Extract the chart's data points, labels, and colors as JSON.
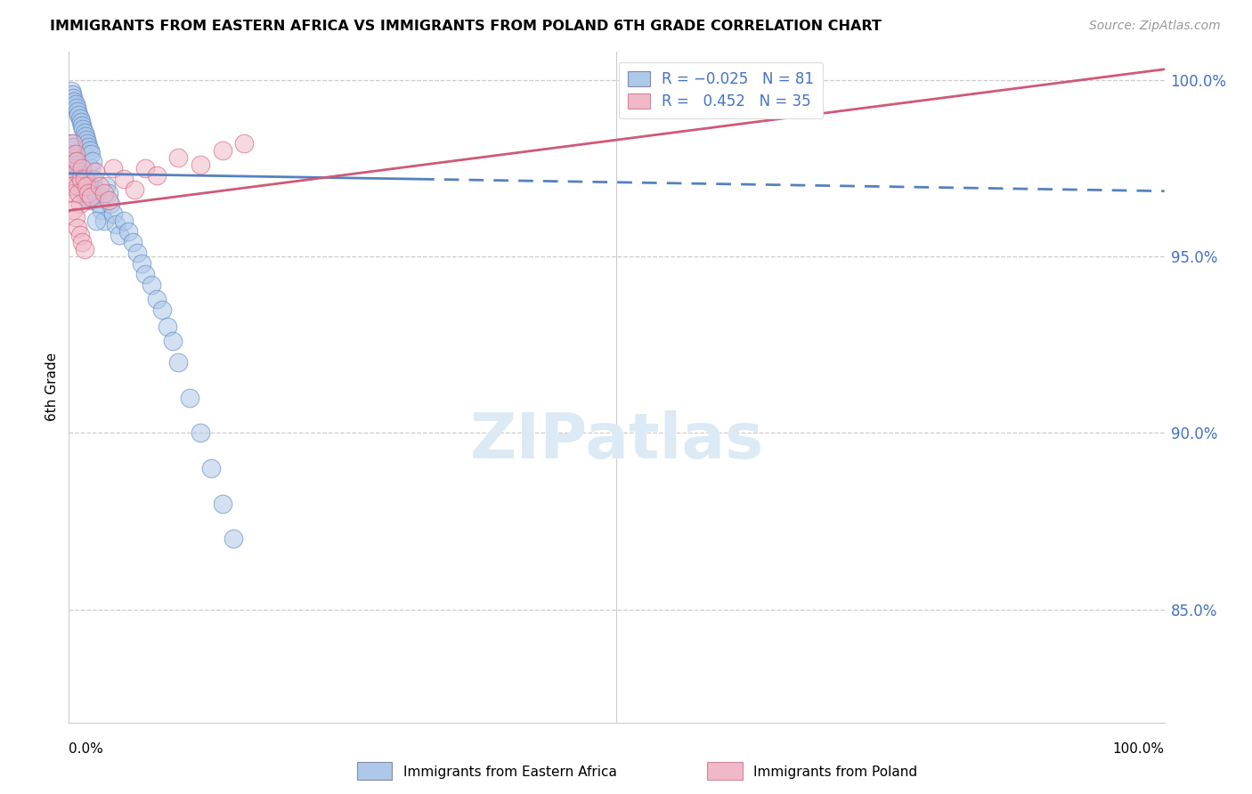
{
  "title": "IMMIGRANTS FROM EASTERN AFRICA VS IMMIGRANTS FROM POLAND 6TH GRADE CORRELATION CHART",
  "source": "Source: ZipAtlas.com",
  "ylabel": "6th Grade",
  "y_tick_labels": [
    "100.0%",
    "95.0%",
    "90.0%",
    "85.0%"
  ],
  "y_tick_values": [
    1.0,
    0.95,
    0.9,
    0.85
  ],
  "xlim": [
    0.0,
    1.0
  ],
  "ylim": [
    0.818,
    1.008
  ],
  "series1_color": "#adc8e8",
  "series2_color": "#f0b8c8",
  "trendline1_color": "#5580c0",
  "trendline2_color": "#d05878",
  "watermark_color": "#dceaf5",
  "blue_x": [
    0.001,
    0.002,
    0.002,
    0.003,
    0.003,
    0.004,
    0.004,
    0.005,
    0.005,
    0.005,
    0.006,
    0.006,
    0.007,
    0.007,
    0.008,
    0.008,
    0.009,
    0.009,
    0.01,
    0.01,
    0.011,
    0.011,
    0.012,
    0.013,
    0.014,
    0.015,
    0.016,
    0.017,
    0.018,
    0.019,
    0.02,
    0.022,
    0.024,
    0.026,
    0.028,
    0.03,
    0.032,
    0.034,
    0.036,
    0.038,
    0.04,
    0.043,
    0.046,
    0.05,
    0.054,
    0.058,
    0.062,
    0.066,
    0.07,
    0.075,
    0.08,
    0.085,
    0.09,
    0.095,
    0.1,
    0.11,
    0.12,
    0.13,
    0.14,
    0.15,
    0.002,
    0.003,
    0.004,
    0.005,
    0.006,
    0.007,
    0.008,
    0.009,
    0.01,
    0.011,
    0.012,
    0.013,
    0.014,
    0.015,
    0.016,
    0.017,
    0.018,
    0.019,
    0.02,
    0.022,
    0.025
  ],
  "blue_y": [
    0.98,
    0.978,
    0.982,
    0.979,
    0.981,
    0.976,
    0.977,
    0.975,
    0.979,
    0.981,
    0.976,
    0.978,
    0.977,
    0.975,
    0.974,
    0.976,
    0.975,
    0.973,
    0.972,
    0.974,
    0.971,
    0.973,
    0.97,
    0.969,
    0.968,
    0.967,
    0.972,
    0.97,
    0.968,
    0.966,
    0.975,
    0.972,
    0.969,
    0.967,
    0.965,
    0.963,
    0.96,
    0.97,
    0.968,
    0.965,
    0.962,
    0.959,
    0.956,
    0.96,
    0.957,
    0.954,
    0.951,
    0.948,
    0.945,
    0.942,
    0.938,
    0.935,
    0.93,
    0.926,
    0.92,
    0.91,
    0.9,
    0.89,
    0.88,
    0.87,
    0.997,
    0.996,
    0.995,
    0.994,
    0.993,
    0.992,
    0.991,
    0.99,
    0.989,
    0.988,
    0.987,
    0.986,
    0.985,
    0.984,
    0.983,
    0.982,
    0.981,
    0.98,
    0.979,
    0.977,
    0.96
  ],
  "pink_x": [
    0.001,
    0.002,
    0.003,
    0.004,
    0.005,
    0.006,
    0.007,
    0.008,
    0.009,
    0.01,
    0.011,
    0.012,
    0.014,
    0.016,
    0.018,
    0.02,
    0.024,
    0.028,
    0.032,
    0.036,
    0.04,
    0.05,
    0.06,
    0.07,
    0.08,
    0.1,
    0.12,
    0.14,
    0.16,
    0.004,
    0.006,
    0.008,
    0.01,
    0.012,
    0.014
  ],
  "pink_y": [
    0.975,
    0.973,
    0.97,
    0.982,
    0.968,
    0.979,
    0.977,
    0.97,
    0.968,
    0.965,
    0.972,
    0.975,
    0.972,
    0.97,
    0.968,
    0.967,
    0.974,
    0.97,
    0.968,
    0.966,
    0.975,
    0.972,
    0.969,
    0.975,
    0.973,
    0.978,
    0.976,
    0.98,
    0.982,
    0.963,
    0.961,
    0.958,
    0.956,
    0.954,
    0.952
  ],
  "trendline1_x0": 0.0,
  "trendline1_x1": 1.0,
  "trendline1_y0": 0.9735,
  "trendline1_y1": 0.9685,
  "trendline1_solid_end": 0.32,
  "trendline2_x0": 0.0,
  "trendline2_x1": 1.0,
  "trendline2_y0": 0.963,
  "trendline2_y1": 1.003
}
